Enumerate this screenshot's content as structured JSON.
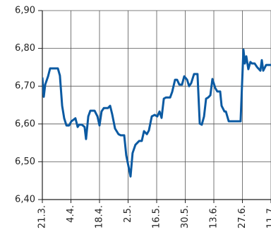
{
  "chart_data": {
    "type": "line",
    "x": [
      0,
      0.7,
      1.4,
      2.8,
      3.8,
      5.2,
      7.6,
      8.6,
      9.7,
      10.7,
      11.8,
      13.1,
      14.2,
      15.2,
      16.2,
      17.3,
      18.0,
      19.4,
      20.7,
      21.4,
      22.5,
      23.5,
      25.6,
      27.0,
      28.0,
      29.0,
      30.1,
      32.1,
      33.2,
      34.2,
      35.6,
      37.3,
      38.4,
      40.1,
      41.1,
      43.2,
      44.2,
      45.6,
      47.4,
      48.7,
      49.8,
      51.2,
      52.2,
      53.6,
      55.0,
      56.3,
      57.4,
      58.4,
      59.5,
      60.5,
      62.6,
      63.6,
      65.0,
      66.0,
      67.1,
      68.4,
      69.5,
      70.9,
      71.9,
      72.9,
      74.3,
      76.0,
      77.1,
      78.1,
      79.2,
      80.2,
      81.2,
      82.3,
      83.3,
      84.7,
      85.7,
      87.1,
      87.8,
      89.2,
      89.9,
      91.3,
      93.3,
      94.7,
      96.4,
      97.1,
      98.5,
      99.2,
      99.9,
      100.9,
      101.9,
      102.7,
      104.0,
      105.1,
      106.8,
      107.5,
      108.2,
      109.6,
      112.0
    ],
    "series": [
      {
        "color": "#0b5aa2",
        "values": [
          6.723,
          6.672,
          6.704,
          6.726,
          6.747,
          6.747,
          6.747,
          6.728,
          6.648,
          6.615,
          6.596,
          6.596,
          6.607,
          6.611,
          6.615,
          6.592,
          6.598,
          6.598,
          6.592,
          6.56,
          6.62,
          6.635,
          6.635,
          6.62,
          6.596,
          6.633,
          6.642,
          6.642,
          6.648,
          6.626,
          6.588,
          6.573,
          6.57,
          6.57,
          6.517,
          6.461,
          6.523,
          6.545,
          6.555,
          6.555,
          6.581,
          6.573,
          6.583,
          6.62,
          6.624,
          6.62,
          6.633,
          6.616,
          6.667,
          6.67,
          6.67,
          6.685,
          6.717,
          6.717,
          6.704,
          6.704,
          6.726,
          6.717,
          6.7,
          6.708,
          6.732,
          6.732,
          6.601,
          6.598,
          6.62,
          6.667,
          6.67,
          6.676,
          6.719,
          6.695,
          6.686,
          6.686,
          6.648,
          6.633,
          6.633,
          6.607,
          6.607,
          6.607,
          6.607,
          6.607,
          6.797,
          6.76,
          6.779,
          6.745,
          6.764,
          6.76,
          6.76,
          6.751,
          6.741,
          6.769,
          6.741,
          6.756,
          6.756
        ]
      }
    ],
    "xlim": [
      0,
      112
    ],
    "xticks": [
      {
        "value": 0,
        "label": "21.3."
      },
      {
        "value": 14,
        "label": "4.4."
      },
      {
        "value": 28,
        "label": "18.4."
      },
      {
        "value": 42,
        "label": "2.5."
      },
      {
        "value": 56,
        "label": "16.5."
      },
      {
        "value": 70,
        "label": "30.5."
      },
      {
        "value": 84,
        "label": "13.6."
      },
      {
        "value": 98,
        "label": "27.6."
      },
      {
        "value": 112,
        "label": "11.7."
      }
    ],
    "ylim": [
      6.4,
      6.9
    ],
    "yticks": [
      {
        "value": 6.4,
        "label": "6,40"
      },
      {
        "value": 6.5,
        "label": "6,50"
      },
      {
        "value": 6.6,
        "label": "6,60"
      },
      {
        "value": 6.7,
        "label": "6,70"
      },
      {
        "value": 6.8,
        "label": "6,80"
      },
      {
        "value": 6.9,
        "label": "6,90"
      }
    ],
    "grid": true
  }
}
